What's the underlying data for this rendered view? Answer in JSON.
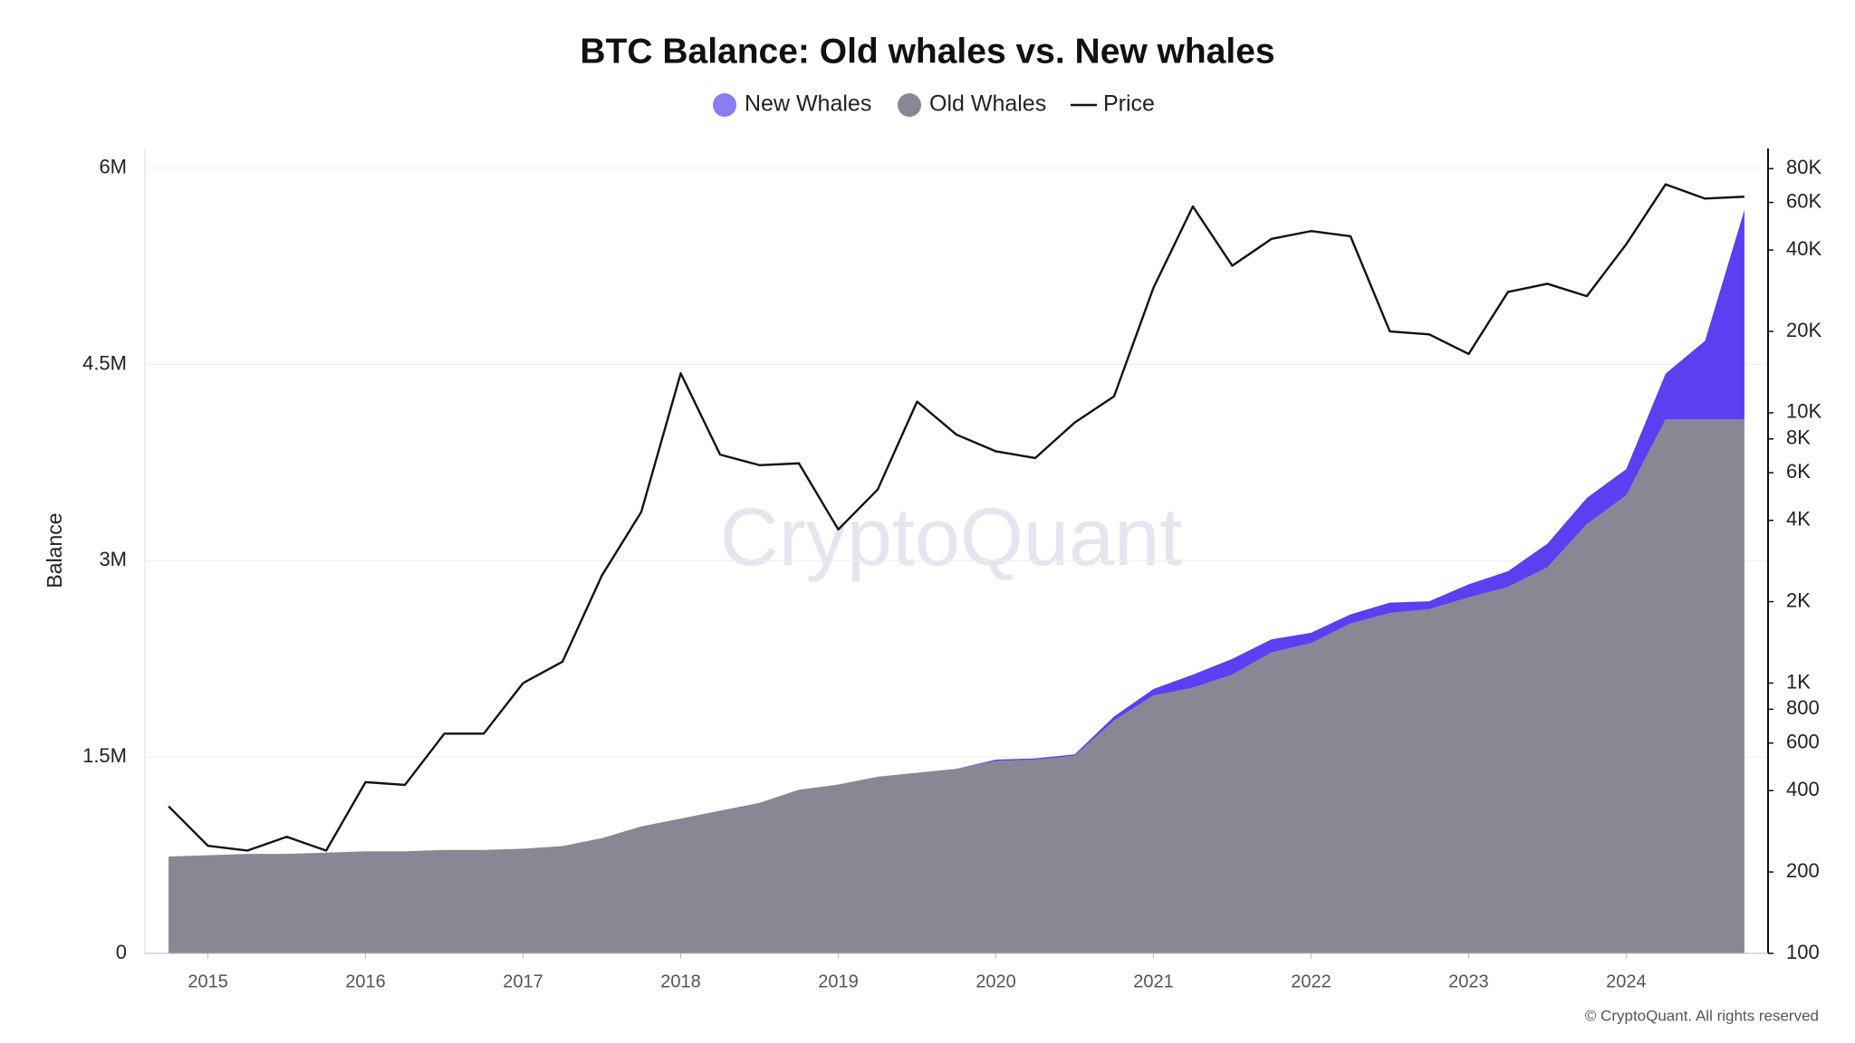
{
  "chart_data": {
    "type": "stacked-area-line",
    "title": "BTC Balance: Old whales vs. New whales",
    "y_label": "Balance",
    "watermark": "CryptoQuant",
    "footer": "© CryptoQuant. All rights reserved",
    "x": [
      2014.75,
      2015,
      2015.25,
      2015.5,
      2015.75,
      2016,
      2016.25,
      2016.5,
      2016.75,
      2017,
      2017.25,
      2017.5,
      2017.75,
      2018,
      2018.25,
      2018.5,
      2018.75,
      2019,
      2019.25,
      2019.5,
      2019.75,
      2020,
      2020.25,
      2020.5,
      2020.75,
      2021,
      2021.25,
      2021.5,
      2021.75,
      2022,
      2022.25,
      2022.5,
      2022.75,
      2023,
      2023.25,
      2023.5,
      2023.75,
      2024,
      2024.25,
      2024.5,
      2024.75
    ],
    "xlim": [
      2014.6,
      2024.9
    ],
    "xticks": [
      2015,
      2016,
      2017,
      2018,
      2019,
      2020,
      2021,
      2022,
      2023,
      2024
    ],
    "ylim": [
      0,
      6150000
    ],
    "yticks": [
      {
        "value": 0,
        "label": "0"
      },
      {
        "value": 1500000,
        "label": "1.5M"
      },
      {
        "value": 3000000,
        "label": "3M"
      },
      {
        "value": 4500000,
        "label": "4.5M"
      },
      {
        "value": 6000000,
        "label": "6M"
      }
    ],
    "y2lim": [
      100,
      95000
    ],
    "y2_log": true,
    "y2ticks": [
      100,
      200,
      400,
      600,
      800,
      {
        "value": 1000,
        "label": "1K"
      },
      {
        "value": 2000,
        "label": "2K"
      },
      {
        "value": 4000,
        "label": "4K"
      },
      {
        "value": 6000,
        "label": "6K"
      },
      {
        "value": 8000,
        "label": "8K"
      },
      {
        "value": 10000,
        "label": "10K"
      },
      {
        "value": 20000,
        "label": "20K"
      },
      {
        "value": 40000,
        "label": "40K"
      },
      {
        "value": 60000,
        "label": "60K"
      },
      {
        "value": 80000,
        "label": "80K"
      }
    ],
    "grid": true,
    "stacked": true,
    "series": [
      {
        "name": "New Whales",
        "color": "#5b3ff0",
        "legend_color": "#8b7cf2",
        "kind": "area",
        "values": [
          0,
          0,
          0,
          0,
          0,
          0,
          0,
          0,
          0,
          0,
          0,
          0,
          0,
          0,
          0,
          0,
          0,
          0,
          0,
          0,
          0,
          10000,
          10000,
          10000,
          30000,
          50000,
          100000,
          120000,
          100000,
          80000,
          70000,
          80000,
          60000,
          100000,
          120000,
          180000,
          200000,
          200000,
          350000,
          600000,
          1600000
        ]
      },
      {
        "name": "Old Whales",
        "color": "#8a8794",
        "legend_color": "#8a8794",
        "kind": "area",
        "values": [
          740000,
          750000,
          760000,
          760000,
          770000,
          780000,
          780000,
          790000,
          790000,
          800000,
          820000,
          880000,
          970000,
          1030000,
          1090000,
          1150000,
          1250000,
          1290000,
          1350000,
          1380000,
          1410000,
          1470000,
          1480000,
          1510000,
          1780000,
          1970000,
          2030000,
          2130000,
          2300000,
          2370000,
          2520000,
          2600000,
          2630000,
          2720000,
          2800000,
          2950000,
          3280000,
          3500000,
          4080000,
          4080000,
          4080000
        ]
      },
      {
        "name": "Price",
        "color": "#111111",
        "legend_color": "#111111",
        "kind": "line",
        "axis": "y2",
        "values": [
          350,
          250,
          240,
          270,
          240,
          430,
          420,
          650,
          650,
          1000,
          1200,
          2500,
          4300,
          14000,
          7000,
          6400,
          6500,
          3700,
          5200,
          11000,
          8300,
          7200,
          6800,
          9200,
          11500,
          29000,
          58000,
          35000,
          44000,
          47000,
          45000,
          20000,
          19500,
          16500,
          28000,
          30000,
          27000,
          42000,
          70000,
          62000,
          63000
        ]
      }
    ]
  }
}
